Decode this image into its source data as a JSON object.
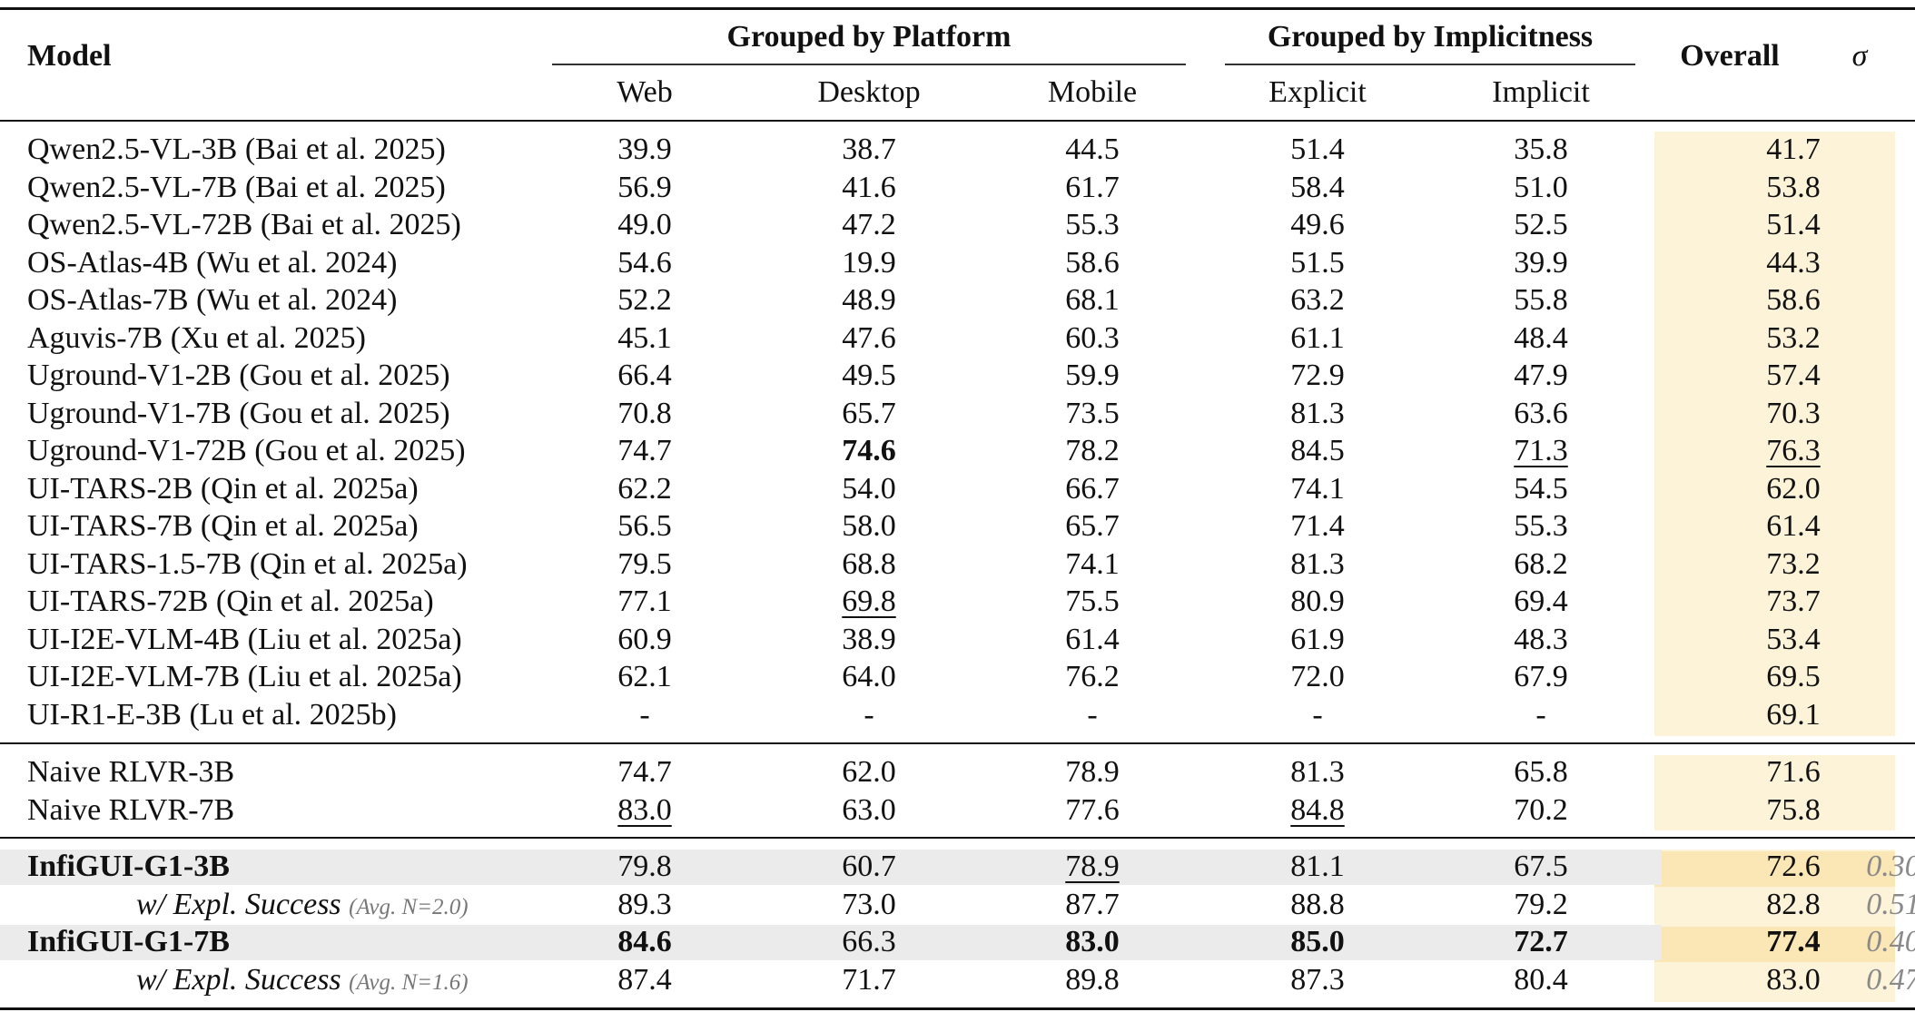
{
  "columns": {
    "model": "Model",
    "group_platform": "Grouped by Platform",
    "group_implicitness": "Grouped by Implicitness",
    "web": "Web",
    "desktop": "Desktop",
    "mobile": "Mobile",
    "explicit": "Explicit",
    "implicit": "Implicit",
    "overall": "Overall",
    "sigma": "σ"
  },
  "colors": {
    "overall_highlight": "#fdf3d9",
    "overall_strong": "#fbe6b5",
    "ours_row": "#ebebeb"
  },
  "baselines": [
    {
      "model": "Qwen2.5-VL-3B (Bai et al. 2025)",
      "web": "39.9",
      "desktop": "38.7",
      "mobile": "44.5",
      "explicit": "51.4",
      "implicit": "35.8",
      "overall": "41.7"
    },
    {
      "model": "Qwen2.5-VL-7B (Bai et al. 2025)",
      "web": "56.9",
      "desktop": "41.6",
      "mobile": "61.7",
      "explicit": "58.4",
      "implicit": "51.0",
      "overall": "53.8"
    },
    {
      "model": "Qwen2.5-VL-72B (Bai et al. 2025)",
      "web": "49.0",
      "desktop": "47.2",
      "mobile": "55.3",
      "explicit": "49.6",
      "implicit": "52.5",
      "overall": "51.4"
    },
    {
      "model": "OS-Atlas-4B (Wu et al. 2024)",
      "web": "54.6",
      "desktop": "19.9",
      "mobile": "58.6",
      "explicit": "51.5",
      "implicit": "39.9",
      "overall": "44.3"
    },
    {
      "model": "OS-Atlas-7B (Wu et al. 2024)",
      "web": "52.2",
      "desktop": "48.9",
      "mobile": "68.1",
      "explicit": "63.2",
      "implicit": "55.8",
      "overall": "58.6"
    },
    {
      "model": "Aguvis-7B (Xu et al. 2025)",
      "web": "45.1",
      "desktop": "47.6",
      "mobile": "60.3",
      "explicit": "61.1",
      "implicit": "48.4",
      "overall": "53.2"
    },
    {
      "model": "Uground-V1-2B (Gou et al. 2025)",
      "web": "66.4",
      "desktop": "49.5",
      "mobile": "59.9",
      "explicit": "72.9",
      "implicit": "47.9",
      "overall": "57.4"
    },
    {
      "model": "Uground-V1-7B (Gou et al. 2025)",
      "web": "70.8",
      "desktop": "65.7",
      "mobile": "73.5",
      "explicit": "81.3",
      "implicit": "63.6",
      "overall": "70.3"
    },
    {
      "model": "Uground-V1-72B (Gou et al. 2025)",
      "web": "74.7",
      "desktop": "74.6",
      "mobile": "78.2",
      "explicit": "84.5",
      "implicit": "71.3",
      "overall": "76.3",
      "bold": [
        "desktop"
      ],
      "underline": [
        "implicit",
        "overall"
      ]
    },
    {
      "model": "UI-TARS-2B (Qin et al. 2025a)",
      "web": "62.2",
      "desktop": "54.0",
      "mobile": "66.7",
      "explicit": "74.1",
      "implicit": "54.5",
      "overall": "62.0"
    },
    {
      "model": "UI-TARS-7B (Qin et al. 2025a)",
      "web": "56.5",
      "desktop": "58.0",
      "mobile": "65.7",
      "explicit": "71.4",
      "implicit": "55.3",
      "overall": "61.4"
    },
    {
      "model": "UI-TARS-1.5-7B (Qin et al. 2025a)",
      "web": "79.5",
      "desktop": "68.8",
      "mobile": "74.1",
      "explicit": "81.3",
      "implicit": "68.2",
      "overall": "73.2"
    },
    {
      "model": "UI-TARS-72B (Qin et al. 2025a)",
      "web": "77.1",
      "desktop": "69.8",
      "mobile": "75.5",
      "explicit": "80.9",
      "implicit": "69.4",
      "overall": "73.7",
      "underline": [
        "desktop"
      ]
    },
    {
      "model": "UI-I2E-VLM-4B (Liu et al. 2025a)",
      "web": "60.9",
      "desktop": "38.9",
      "mobile": "61.4",
      "explicit": "61.9",
      "implicit": "48.3",
      "overall": "53.4"
    },
    {
      "model": "UI-I2E-VLM-7B (Liu et al. 2025a)",
      "web": "62.1",
      "desktop": "64.0",
      "mobile": "76.2",
      "explicit": "72.0",
      "implicit": "67.9",
      "overall": "69.5"
    },
    {
      "model": "UI-R1-E-3B (Lu et al. 2025b)",
      "web": "-",
      "desktop": "-",
      "mobile": "-",
      "explicit": "-",
      "implicit": "-",
      "overall": "69.1"
    }
  ],
  "rlvr": [
    {
      "model": "Naive RLVR-3B",
      "web": "74.7",
      "desktop": "62.0",
      "mobile": "78.9",
      "explicit": "81.3",
      "implicit": "65.8",
      "overall": "71.6"
    },
    {
      "model": "Naive RLVR-7B",
      "web": "83.0",
      "desktop": "63.0",
      "mobile": "77.6",
      "explicit": "84.8",
      "implicit": "70.2",
      "overall": "75.8",
      "underline": [
        "web",
        "explicit"
      ]
    }
  ],
  "ours": [
    {
      "model": "InfiGUI-G1-3B",
      "web": "79.8",
      "desktop": "60.7",
      "mobile": "78.9",
      "explicit": "81.1",
      "implicit": "67.5",
      "overall": "72.6",
      "sigma": "0.30",
      "underline": [
        "mobile"
      ],
      "model_bold": true,
      "shaded": true
    },
    {
      "model": "w/ Expl. Success",
      "avg": "(Avg. N=2.0)",
      "web": "89.3",
      "desktop": "73.0",
      "mobile": "87.7",
      "explicit": "88.8",
      "implicit": "79.2",
      "overall": "82.8",
      "sigma": "0.51",
      "sub": true
    },
    {
      "model": "InfiGUI-G1-7B",
      "web": "84.6",
      "desktop": "66.3",
      "mobile": "83.0",
      "explicit": "85.0",
      "implicit": "72.7",
      "overall": "77.4",
      "sigma": "0.40",
      "bold": [
        "web",
        "mobile",
        "explicit",
        "implicit",
        "overall"
      ],
      "model_bold": true,
      "shaded": true,
      "strong_overall": true
    },
    {
      "model": "w/ Expl. Success",
      "avg": "(Avg. N=1.6)",
      "web": "87.4",
      "desktop": "71.7",
      "mobile": "89.8",
      "explicit": "87.3",
      "implicit": "80.4",
      "overall": "83.0",
      "sigma": "0.47",
      "sub": true
    }
  ]
}
